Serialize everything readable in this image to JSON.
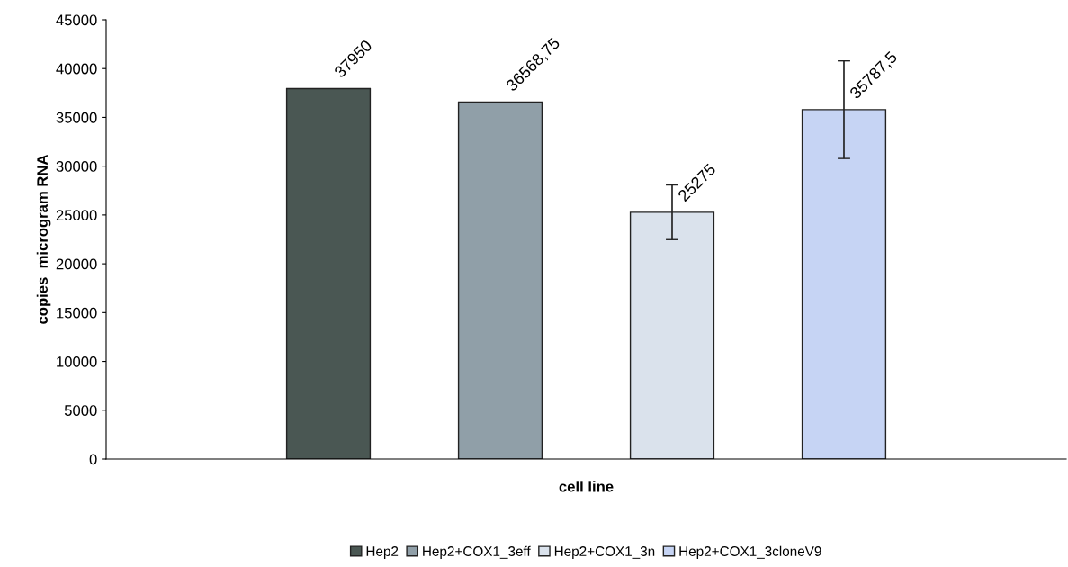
{
  "chart_data": {
    "type": "bar",
    "xlabel": "cell line",
    "ylabel": "copies_microgram RNA",
    "categories": [
      null
    ],
    "series": [
      {
        "name": "Hep2",
        "color": "#4a5753",
        "values": [
          37950
        ],
        "value_labels": [
          "37950"
        ]
      },
      {
        "name": "Hep2+COX1_3eff",
        "color": "#909fa8",
        "values": [
          36568.75
        ],
        "value_labels": [
          "36568,75"
        ]
      },
      {
        "name": "Hep2+COX1_3n",
        "color": "#dae2ec",
        "values": [
          25275
        ],
        "errors": [
          2800
        ],
        "value_labels": [
          "25275"
        ]
      },
      {
        "name": "Hep2+COX1_3cloneV9",
        "color": "#c6d4f4",
        "values": [
          35787.5
        ],
        "errors": [
          5000
        ],
        "value_labels": [
          "35787,5"
        ]
      }
    ],
    "ylim": [
      0,
      45000
    ],
    "yticks": [
      0,
      5000,
      10000,
      15000,
      20000,
      25000,
      30000,
      35000,
      40000,
      45000
    ],
    "grid": false,
    "legend": "bottom"
  }
}
